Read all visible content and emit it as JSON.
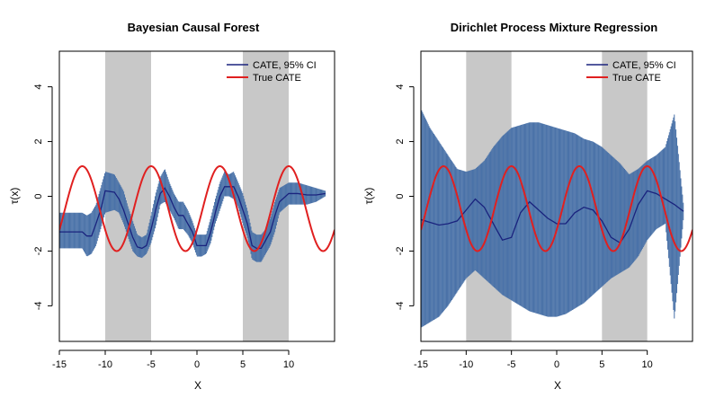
{
  "chart_data": [
    {
      "type": "line",
      "title": "Bayesian Causal Forest",
      "xlabel": "X",
      "ylabel": "τ(x)",
      "xlim": [
        -15,
        15
      ],
      "ylim": [
        -5.3,
        5.3
      ],
      "x_ticks": [
        -15,
        -10,
        -5,
        0,
        5,
        10
      ],
      "y_ticks": [
        -4,
        -2,
        0,
        2,
        4
      ],
      "shaded_regions": [
        [
          -10,
          -5
        ],
        [
          5,
          10
        ]
      ],
      "shade_color": "#c8c8c8",
      "legend": {
        "position": "top-right",
        "entries": [
          {
            "label": "CATE, 95% CI",
            "color": "#1a237e"
          },
          {
            "label": "True CATE",
            "color": "#e02020"
          }
        ]
      },
      "series": [
        {
          "name": "CATE, 95% CI",
          "color": "#1a237e",
          "x": [
            -15,
            -12.5,
            -12,
            -11.5,
            -11,
            -10.5,
            -10,
            -9,
            -8.5,
            -8,
            -7.5,
            -7,
            -6.5,
            -6,
            -5.5,
            -5,
            -4.5,
            -4,
            -3.5,
            -3,
            -2.5,
            -2,
            -1.5,
            -1,
            -0.5,
            0,
            0.5,
            1,
            1.5,
            2,
            2.5,
            3,
            3.5,
            4,
            4.5,
            5,
            5.5,
            6,
            6.5,
            7,
            7.5,
            8,
            8.5,
            9,
            10,
            11,
            12,
            13,
            14
          ],
          "y": [
            -1.3,
            -1.3,
            -1.45,
            -1.45,
            -1.0,
            -0.5,
            0.2,
            0.15,
            -0.1,
            -0.5,
            -1.0,
            -1.5,
            -1.85,
            -1.9,
            -1.8,
            -1.2,
            -0.5,
            0.1,
            0.3,
            0.0,
            -0.4,
            -0.7,
            -0.7,
            -1.0,
            -1.3,
            -1.8,
            -1.8,
            -1.8,
            -1.3,
            -0.6,
            0.0,
            0.35,
            0.35,
            0.35,
            0.0,
            -0.5,
            -1.0,
            -1.8,
            -1.9,
            -1.9,
            -1.6,
            -1.3,
            -0.7,
            -0.2,
            0.1,
            0.1,
            0.05,
            0.05,
            0.1
          ],
          "lower": [
            -1.9,
            -1.9,
            -2.2,
            -2.1,
            -1.8,
            -1.2,
            -0.6,
            -0.5,
            -0.6,
            -1.0,
            -1.5,
            -2.0,
            -2.2,
            -2.25,
            -2.1,
            -1.7,
            -1.1,
            -0.3,
            -0.2,
            -0.5,
            -0.8,
            -1.2,
            -1.2,
            -1.4,
            -1.7,
            -2.2,
            -2.2,
            -2.1,
            -1.7,
            -1.0,
            -0.5,
            0.0,
            0.0,
            -0.1,
            -0.4,
            -1.0,
            -1.5,
            -2.3,
            -2.4,
            -2.4,
            -2.1,
            -1.8,
            -1.3,
            -0.6,
            -0.3,
            -0.3,
            -0.3,
            -0.2,
            0.0
          ],
          "upper": [
            -0.6,
            -0.6,
            -0.7,
            -0.6,
            -0.3,
            0.3,
            0.9,
            0.8,
            0.5,
            0.2,
            -0.4,
            -0.9,
            -1.4,
            -1.5,
            -1.4,
            -0.7,
            0.1,
            0.7,
            1.0,
            0.5,
            0.1,
            -0.2,
            -0.2,
            -0.5,
            -0.9,
            -1.4,
            -1.4,
            -1.4,
            -0.8,
            -0.1,
            0.5,
            0.9,
            0.8,
            0.9,
            0.5,
            0.1,
            -0.5,
            -1.3,
            -1.4,
            -1.4,
            -1.2,
            -0.8,
            -0.2,
            0.3,
            0.5,
            0.5,
            0.4,
            0.3,
            0.2
          ]
        },
        {
          "name": "True CATE",
          "color": "#e02020",
          "function": "sin"
        }
      ]
    },
    {
      "type": "line",
      "title": "Dirichlet Process Mixture Regression",
      "xlabel": "X",
      "ylabel": "τ(x)",
      "xlim": [
        -15,
        15
      ],
      "ylim": [
        -5.3,
        5.3
      ],
      "x_ticks": [
        -15,
        -10,
        -5,
        0,
        5,
        10
      ],
      "y_ticks": [
        -4,
        -2,
        0,
        2,
        4
      ],
      "shaded_regions": [
        [
          -10,
          -5
        ],
        [
          5,
          10
        ]
      ],
      "shade_color": "#c8c8c8",
      "legend": {
        "position": "top-right",
        "entries": [
          {
            "label": "CATE, 95% CI",
            "color": "#1a237e"
          },
          {
            "label": "True CATE",
            "color": "#e02020"
          }
        ]
      },
      "series": [
        {
          "name": "CATE, 95% CI",
          "color": "#1a237e",
          "x": [
            -15,
            -14,
            -13,
            -12,
            -11,
            -10,
            -9,
            -8,
            -7,
            -6,
            -5,
            -4,
            -3,
            -2,
            -1,
            0,
            1,
            2,
            3,
            4,
            5,
            6,
            7,
            8,
            9,
            10,
            11,
            12,
            13,
            14
          ],
          "y": [
            -0.85,
            -0.95,
            -1.05,
            -1.0,
            -0.9,
            -0.5,
            -0.1,
            -0.4,
            -1.0,
            -1.6,
            -1.5,
            -0.6,
            -0.2,
            -0.5,
            -0.8,
            -1.0,
            -1.0,
            -0.6,
            -0.4,
            -0.5,
            -0.9,
            -1.5,
            -1.7,
            -1.2,
            -0.3,
            0.2,
            0.1,
            -0.1,
            -0.3,
            -0.55
          ],
          "lower": [
            -4.8,
            -4.6,
            -4.4,
            -4.0,
            -3.5,
            -3.0,
            -2.7,
            -3.0,
            -3.3,
            -3.6,
            -3.8,
            -4.0,
            -4.2,
            -4.3,
            -4.4,
            -4.4,
            -4.3,
            -4.1,
            -3.9,
            -3.6,
            -3.3,
            -3.0,
            -2.8,
            -2.6,
            -2.2,
            -1.6,
            -1.2,
            -1.0,
            -4.5,
            -0.8
          ],
          "upper": [
            3.2,
            2.5,
            2.0,
            1.5,
            1.0,
            0.9,
            1.0,
            1.3,
            1.8,
            2.2,
            2.5,
            2.6,
            2.7,
            2.7,
            2.6,
            2.5,
            2.4,
            2.3,
            2.1,
            2.0,
            1.8,
            1.5,
            1.2,
            0.8,
            1.0,
            1.3,
            1.5,
            1.8,
            3.0,
            -0.3
          ]
        },
        {
          "name": "True CATE",
          "color": "#e02020",
          "function": "sin"
        }
      ]
    }
  ]
}
